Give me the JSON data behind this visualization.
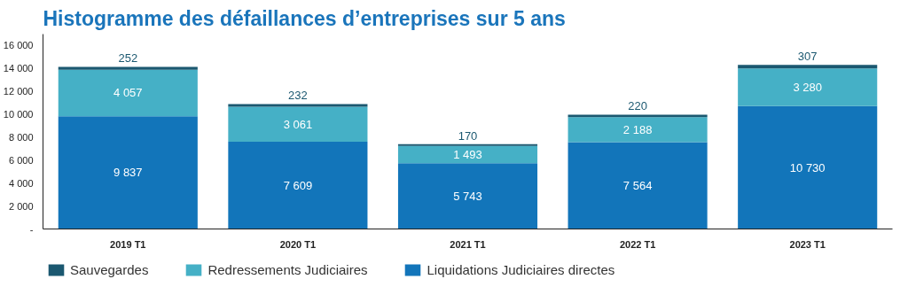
{
  "chart_data": {
    "type": "bar",
    "title": "Histogramme des défaillances d’entreprises sur 5 ans",
    "categories": [
      "2019 T1",
      "2020 T1",
      "2021 T1",
      "2022 T1",
      "2023 T1"
    ],
    "stacked": true,
    "series": [
      {
        "name": "Liquidations Judiciaires directes",
        "color": "#1275ba",
        "values": [
          9837,
          7609,
          5743,
          7564,
          10730
        ],
        "value_labels": [
          "9 837",
          "7 609",
          "5 743",
          "7 564",
          "10 730"
        ]
      },
      {
        "name": "Redressements Judiciaires",
        "color": "#45b0c6",
        "values": [
          4057,
          3061,
          1493,
          2188,
          3280
        ],
        "value_labels": [
          "4 057",
          "3 061",
          "1 493",
          "2 188",
          "3 280"
        ]
      },
      {
        "name": "Sauvegardes",
        "color": "#1b5870",
        "values": [
          252,
          232,
          170,
          220,
          307
        ],
        "value_labels": [
          "252",
          "232",
          "170",
          "220",
          "307"
        ]
      }
    ],
    "ylim": [
      0,
      17000
    ],
    "yticks": [
      {
        "value": 0,
        "label": "-"
      },
      {
        "value": 2000,
        "label": "2 000"
      },
      {
        "value": 4000,
        "label": "4 000"
      },
      {
        "value": 6000,
        "label": "6 000"
      },
      {
        "value": 8000,
        "label": "8 000"
      },
      {
        "value": 10000,
        "label": "10 000"
      },
      {
        "value": 12000,
        "label": "12 000"
      },
      {
        "value": 14000,
        "label": "14 000"
      },
      {
        "value": 16000,
        "label": "16 000"
      }
    ],
    "grid": false,
    "legend": "bottom left"
  }
}
